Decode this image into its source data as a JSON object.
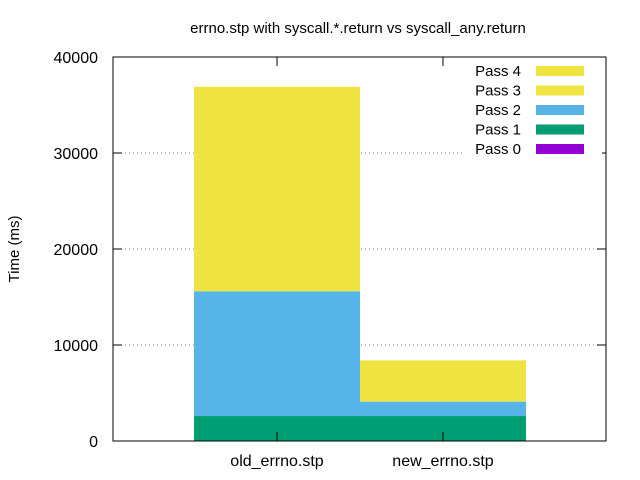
{
  "chart_data": {
    "type": "bar",
    "stacked": true,
    "title": "errno.stp with syscall.*.return vs syscall_any.return",
    "ylabel": "Time (ms)",
    "xlabel": "",
    "ylim": [
      0,
      40000
    ],
    "yticks": [
      0,
      10000,
      20000,
      30000,
      40000
    ],
    "grid": true,
    "legend_position": "top-right",
    "categories": [
      "old_errno.stp",
      "new_errno.stp"
    ],
    "series": [
      {
        "name": "Pass 0",
        "color": "#9400d3",
        "values": [
          0,
          0
        ]
      },
      {
        "name": "Pass 1",
        "color": "#009e73",
        "values": [
          2600,
          2600
        ]
      },
      {
        "name": "Pass 2",
        "color": "#56b4e9",
        "values": [
          13000,
          1500
        ]
      },
      {
        "name": "Pass 3",
        "color": "#f0e442",
        "values": [
          21300,
          4300
        ]
      },
      {
        "name": "Pass 4",
        "color": "#f0e442",
        "values": [
          0,
          0
        ]
      }
    ]
  }
}
